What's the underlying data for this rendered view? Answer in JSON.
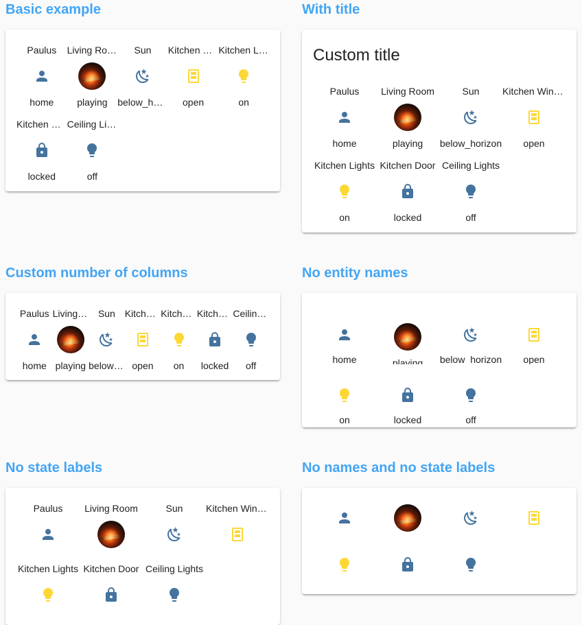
{
  "colors": {
    "section_title": "#42a5f5",
    "icon_off": "#44739e",
    "icon_on": "#fdd835"
  },
  "sections": {
    "basic": {
      "title": "Basic example",
      "card_title": ""
    },
    "with_title": {
      "title": "With title",
      "card_title": "Custom title"
    },
    "columns": {
      "title": "Custom number of columns",
      "card_title": ""
    },
    "no_names": {
      "title": "No entity names",
      "card_title": ""
    },
    "no_state": {
      "title": "No state labels",
      "card_title": ""
    },
    "no_both": {
      "title": "No names and no state labels",
      "card_title": ""
    }
  },
  "entities": [
    {
      "name": "Paulus",
      "state": "home",
      "icon": "account-icon",
      "active": false
    },
    {
      "name": "Living Room",
      "state": "playing",
      "icon": "media-avatar",
      "active": false
    },
    {
      "name": "Sun",
      "state": "below_horizon",
      "icon": "weather-night-icon",
      "active": false
    },
    {
      "name": "Kitchen Window",
      "state": "open",
      "icon": "window-open-icon",
      "active": true
    },
    {
      "name": "Kitchen Lights",
      "state": "on",
      "icon": "lightbulb-icon",
      "active": true
    },
    {
      "name": "Kitchen Door",
      "state": "locked",
      "icon": "lock-icon",
      "active": false
    },
    {
      "name": "Ceiling Lights",
      "state": "off",
      "icon": "lightbulb-icon",
      "active": false
    }
  ]
}
